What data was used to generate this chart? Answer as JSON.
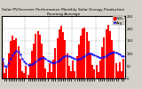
{
  "title": "Solar PV/Inverter Performance Monthly Solar Energy Production Running Average",
  "bar_color": "#FF0000",
  "avg_color": "#0000FF",
  "background_color": "#D4D0C8",
  "plot_bg": "#FFFFFF",
  "monthly_values": [
    80,
    20,
    40,
    100,
    150,
    170,
    155,
    160,
    130,
    80,
    30,
    20,
    50,
    15,
    60,
    110,
    140,
    180,
    190,
    175,
    140,
    90,
    40,
    25,
    60,
    25,
    75,
    120,
    160,
    195,
    210,
    185,
    155,
    100,
    50,
    30,
    70,
    30,
    90,
    135,
    170,
    200,
    205,
    185,
    150,
    100,
    55,
    35,
    55,
    25,
    70,
    125,
    165,
    195,
    215,
    190,
    155,
    110,
    60,
    30,
    65,
    30,
    80
  ],
  "running_avg": [
    80,
    50,
    47,
    60,
    78,
    93,
    102,
    109,
    106,
    95,
    80,
    68,
    60,
    55,
    53,
    56,
    60,
    67,
    74,
    79,
    83,
    82,
    78,
    72,
    68,
    64,
    62,
    63,
    67,
    73,
    80,
    86,
    90,
    91,
    89,
    85,
    82,
    78,
    76,
    77,
    80,
    85,
    91,
    96,
    99,
    100,
    98,
    94,
    90,
    86,
    83,
    84,
    87,
    91,
    97,
    101,
    104,
    105,
    104,
    100,
    96,
    91,
    89
  ],
  "ylim": [
    0,
    250
  ],
  "ytick_labels": [
    "1",
    "E",
    "1",
    "E",
    "2",
    "E"
  ],
  "n_bars": 63,
  "title_fontsize": 3.2,
  "tick_fontsize": 2.8,
  "legend_fontsize": 2.8,
  "ylabel_right": [
    "250",
    "200",
    "150",
    "100",
    "50",
    "0"
  ]
}
